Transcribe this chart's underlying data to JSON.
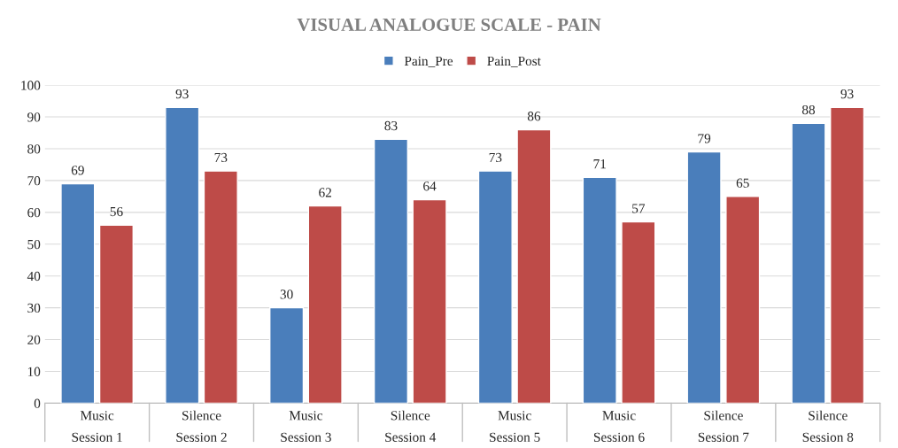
{
  "chart_data": {
    "type": "bar",
    "title": "VISUAL ANALOGUE SCALE - PAIN",
    "categories": [
      "Music\nSession 1",
      "Silence\nSession 2",
      "Music\nSession 3",
      "Silence\nSession 4",
      "Music\nSession 5",
      "Music\nSession 6",
      "Silence\nSession 7",
      "Silence\nSession 8"
    ],
    "series": [
      {
        "name": "Pain_Pre",
        "color": "#4a7ebb",
        "values": [
          69,
          93,
          30,
          83,
          73,
          71,
          79,
          88
        ]
      },
      {
        "name": "Pain_Post",
        "color": "#be4b48",
        "values": [
          56,
          73,
          62,
          64,
          86,
          57,
          65,
          93
        ]
      }
    ],
    "ylim": [
      0,
      100
    ],
    "yticks": [
      0,
      10,
      20,
      30,
      40,
      50,
      60,
      70,
      80,
      90,
      100
    ],
    "grid": "y",
    "legend": "top",
    "data_labels": true
  }
}
